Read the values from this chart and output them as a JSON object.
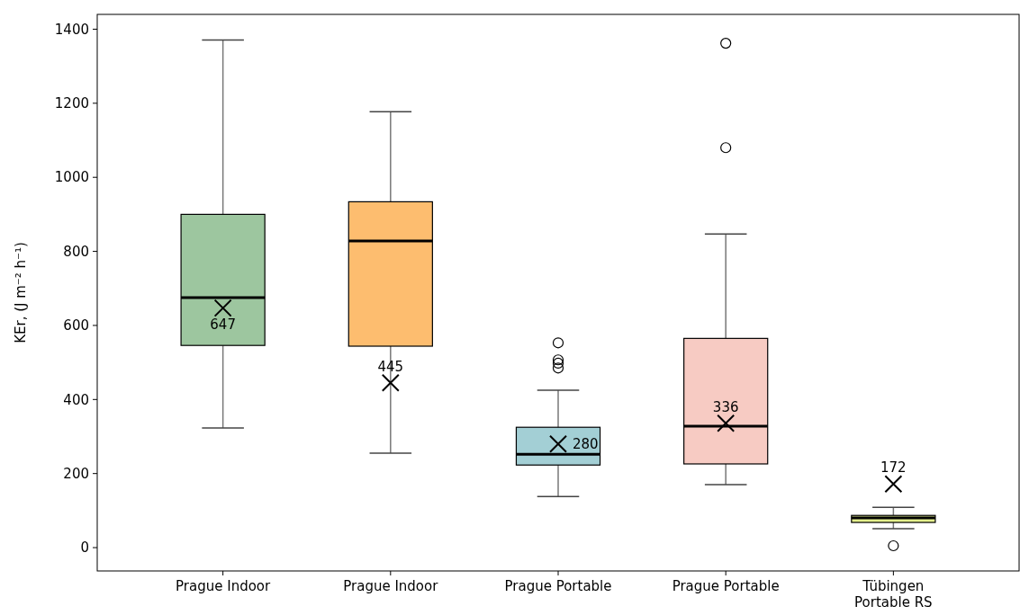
{
  "chart_data": {
    "type": "box",
    "categories": [
      "Prague Indoor",
      "Prague Indoor",
      "Prague Portable",
      "Prague Portable",
      "Tübingen\nPortable RS"
    ],
    "ylabel": "KEr, (J m⁻² h⁻¹)",
    "ylim": [
      -63,
      1440
    ],
    "yticks": [
      0,
      200,
      400,
      600,
      800,
      1000,
      1200,
      1400
    ],
    "colors": [
      "#9dc69f",
      "#fdbd6f",
      "#a3cfd5",
      "#f7cbc3",
      "#e3ee8c"
    ],
    "value_labels": [
      "647",
      "445",
      "280",
      "336",
      "172"
    ],
    "boxes": [
      {
        "low": 323,
        "q1": 546,
        "median": 675,
        "q3": 900,
        "high": 1371,
        "mean": 647
      },
      {
        "low": 255,
        "q1": 544,
        "median": 828,
        "q3": 934,
        "high": 1177,
        "mean": 445
      },
      {
        "low": 138,
        "q1": 223,
        "median": 252,
        "q3": 325,
        "high": 425,
        "mean": 280,
        "outliers": [
          553,
          507,
          498,
          485
        ]
      },
      {
        "low": 170,
        "q1": 226,
        "median": 328,
        "q3": 565,
        "high": 847,
        "mean": 336,
        "outliers": [
          1362,
          1080
        ]
      },
      {
        "low": 51,
        "q1": 68,
        "median": 80,
        "q3": 87,
        "high": 109,
        "mean": 172,
        "outliers": [
          5
        ]
      }
    ]
  }
}
